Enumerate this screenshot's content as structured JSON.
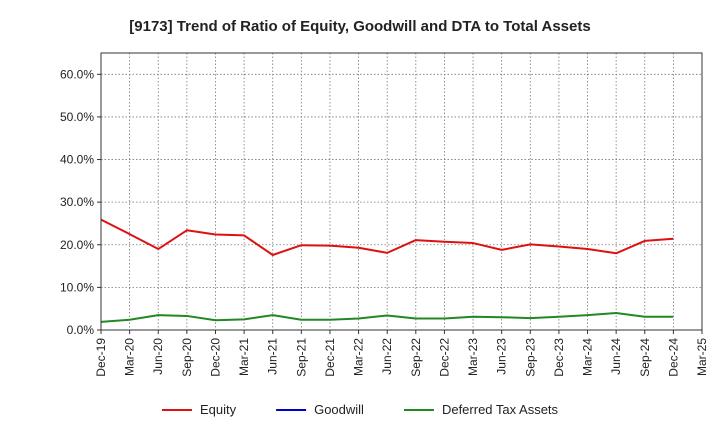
{
  "chart_data": {
    "type": "line",
    "title": "[9173]  Trend of Ratio of Equity, Goodwill and DTA to Total Assets",
    "xlabel": "",
    "ylabel": "",
    "ylim": [
      0,
      65
    ],
    "yticks": [
      0,
      10,
      20,
      30,
      40,
      50,
      60
    ],
    "ytick_labels": [
      "0.0%",
      "10.0%",
      "20.0%",
      "30.0%",
      "40.0%",
      "50.0%",
      "60.0%"
    ],
    "grid": true,
    "legend_position": "bottom",
    "x_tick_labels": [
      "Dec-19",
      "Mar-20",
      "Jun-20",
      "Sep-20",
      "Dec-20",
      "Mar-21",
      "Jun-21",
      "Sep-21",
      "Dec-21",
      "Mar-22",
      "Jun-22",
      "Sep-22",
      "Dec-22",
      "Mar-23",
      "Jun-23",
      "Sep-23",
      "Dec-23",
      "Mar-24",
      "Jun-24",
      "Sep-24",
      "Dec-24",
      "Mar-25"
    ],
    "series": [
      {
        "name": "Equity",
        "color": "#dd1111",
        "values": [
          25.9,
          22.5,
          19.0,
          23.4,
          22.4,
          22.2,
          17.6,
          19.9,
          19.8,
          19.3,
          18.1,
          21.1,
          20.7,
          20.4,
          18.8,
          20.1,
          19.6,
          19.0,
          18.0,
          20.9,
          21.4,
          null
        ]
      },
      {
        "name": "Goodwill",
        "color": "#0000cc",
        "values": [
          null,
          null,
          null,
          null,
          null,
          null,
          null,
          null,
          null,
          null,
          null,
          null,
          null,
          null,
          null,
          null,
          null,
          null,
          null,
          null,
          null,
          null
        ]
      },
      {
        "name": "Deferred Tax Assets",
        "color": "#228822",
        "values": [
          1.9,
          2.4,
          3.5,
          3.3,
          2.3,
          2.5,
          3.5,
          2.4,
          2.4,
          2.7,
          3.4,
          2.7,
          2.7,
          3.1,
          3.0,
          2.8,
          3.1,
          3.5,
          4.0,
          3.1,
          3.1,
          null
        ]
      }
    ]
  }
}
